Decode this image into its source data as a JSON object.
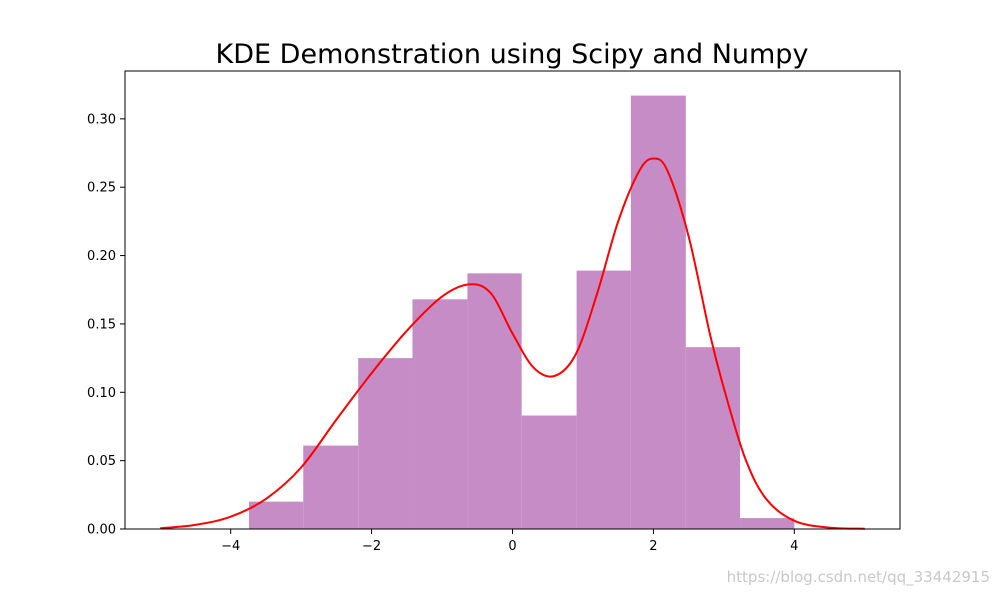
{
  "chart_data": {
    "type": "bar",
    "title": "KDE Demonstration using Scipy and Numpy",
    "xlabel": "",
    "ylabel": "",
    "xlim": [
      -5.5,
      5.5
    ],
    "ylim": [
      0,
      0.335
    ],
    "x_ticks": [
      -4,
      -2,
      0,
      2,
      4
    ],
    "x_tick_labels": [
      "−4",
      "−2",
      "0",
      "2",
      "4"
    ],
    "y_ticks": [
      0.0,
      0.05,
      0.1,
      0.15,
      0.2,
      0.25,
      0.3
    ],
    "y_tick_labels": [
      "0.00",
      "0.05",
      "0.10",
      "0.15",
      "0.20",
      "0.25",
      "0.30"
    ],
    "grid": false,
    "histogram": {
      "color": "#c58cc6",
      "bins": [
        {
          "x0": -3.74,
          "x1": -2.97,
          "value": 0.02
        },
        {
          "x0": -2.97,
          "x1": -2.19,
          "value": 0.061
        },
        {
          "x0": -2.19,
          "x1": -1.42,
          "value": 0.125
        },
        {
          "x0": -1.42,
          "x1": -0.64,
          "value": 0.168
        },
        {
          "x0": -0.64,
          "x1": 0.13,
          "value": 0.187
        },
        {
          "x0": 0.13,
          "x1": 0.91,
          "value": 0.083
        },
        {
          "x0": 0.91,
          "x1": 1.68,
          "value": 0.189
        },
        {
          "x0": 1.68,
          "x1": 2.46,
          "value": 0.317
        },
        {
          "x0": 2.46,
          "x1": 3.23,
          "value": 0.133
        },
        {
          "x0": 3.23,
          "x1": 4.0,
          "value": 0.008
        }
      ]
    },
    "kde_line": {
      "color": "#ff0000",
      "x": [
        -5.0,
        -4.5,
        -4.0,
        -3.5,
        -3.0,
        -2.5,
        -2.0,
        -1.5,
        -1.0,
        -0.6,
        -0.3,
        0.0,
        0.3,
        0.6,
        0.9,
        1.2,
        1.5,
        1.8,
        2.0,
        2.2,
        2.5,
        2.8,
        3.0,
        3.3,
        3.6,
        4.0,
        4.5,
        5.0
      ],
      "y": [
        0.0005,
        0.003,
        0.009,
        0.022,
        0.045,
        0.08,
        0.114,
        0.145,
        0.17,
        0.179,
        0.172,
        0.143,
        0.118,
        0.112,
        0.128,
        0.172,
        0.225,
        0.262,
        0.271,
        0.262,
        0.214,
        0.143,
        0.103,
        0.052,
        0.022,
        0.006,
        0.001,
        0.0002
      ]
    }
  },
  "watermark": "https://blog.csdn.net/qq_33442915"
}
